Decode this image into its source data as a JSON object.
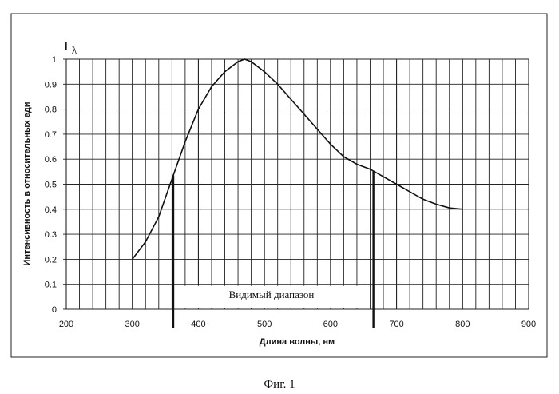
{
  "chart_data": {
    "type": "line",
    "xlabel": "Длина волны, нм",
    "ylabel": "Интенсивность в относительных еди",
    "y_symbol": "I",
    "y_symbol_sub": "λ",
    "xlim": [
      200,
      900
    ],
    "ylim": [
      0,
      1
    ],
    "x_ticks": [
      "200",
      "300",
      "400",
      "500",
      "600",
      "700",
      "800",
      "900"
    ],
    "y_ticks": [
      "0",
      "0.1",
      "0.2",
      "0.3",
      "0.4",
      "0.5",
      "0.6",
      "0.7",
      "0.8",
      "0.9",
      "1"
    ],
    "grid": true,
    "series": [
      {
        "x": [
          300,
          320,
          340,
          360,
          380,
          400,
          420,
          440,
          460,
          470,
          480,
          500,
          520,
          540,
          560,
          580,
          600,
          620,
          640,
          660,
          680,
          700,
          720,
          740,
          760,
          780,
          800
        ],
        "y": [
          0.2,
          0.27,
          0.37,
          0.52,
          0.67,
          0.8,
          0.89,
          0.95,
          0.99,
          1.0,
          0.99,
          0.95,
          0.9,
          0.84,
          0.78,
          0.72,
          0.66,
          0.61,
          0.58,
          0.56,
          0.53,
          0.5,
          0.47,
          0.44,
          0.42,
          0.405,
          0.4
        ]
      }
    ],
    "annotations": {
      "visible_band_label": "Видимый диапазон",
      "visible_band_start": 362,
      "visible_band_end": 665
    },
    "caption": "Фиг. 1"
  }
}
